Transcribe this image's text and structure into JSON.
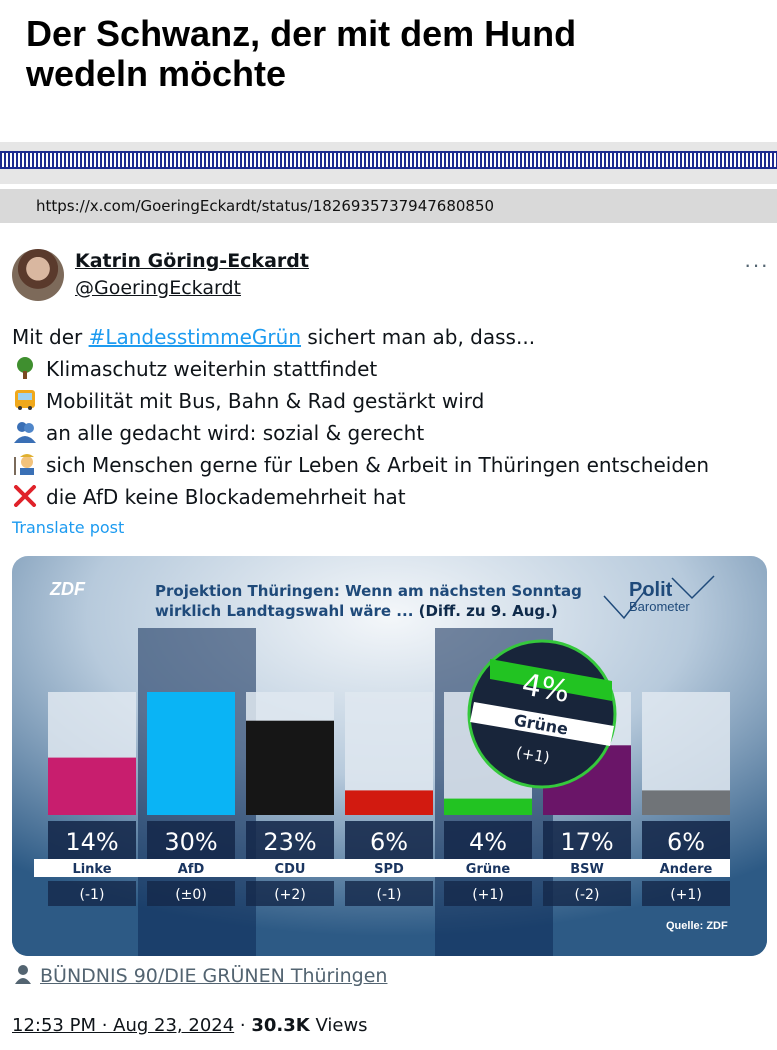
{
  "page": {
    "headline": "Der Schwanz, der mit dem Hund wedeln möchte",
    "url": "https://x.com/GoeringEckardt/status/1826935737947680850"
  },
  "post": {
    "author_name": "Katrin Göring-Eckardt",
    "author_handle": "@GoeringEckardt",
    "more_label": "···",
    "intro_before": "Mit der ",
    "hashtag": "#LandesstimmeGrün",
    "intro_after": " sichert man ab, dass...",
    "items": [
      {
        "icon": "tree-icon",
        "text": "Klimaschutz weiterhin stattfindet"
      },
      {
        "icon": "bus-icon",
        "text": "Mobilität mit Bus, Bahn & Rad gestärkt wird"
      },
      {
        "icon": "people-hugging-icon",
        "text": "an alle gedacht wird: sozial & gerecht"
      },
      {
        "icon": "farmer-icon",
        "text": "sich Menschen gerne für Leben & Arbeit in Thüringen entscheiden"
      },
      {
        "icon": "cross-mark-icon",
        "text": "die AfD keine Blockademehrheit hat"
      }
    ],
    "translate_label": "Translate post",
    "attribution": "BÜNDNIS 90/DIE GRÜNEN Thüringen",
    "timestamp": "12:53 PM · Aug 23, 2024",
    "views_count": "30.3K",
    "views_label": "Views"
  },
  "graphic": {
    "broadcaster": "ZDF",
    "brand_line1": "Polit",
    "brand_line2": "Barometer",
    "source": "Quelle: ZDF",
    "highlight_value": "4%",
    "highlight_party": "Grüne",
    "highlight_change": "(+1)"
  },
  "chart_data": {
    "type": "bar",
    "title": "Projektion Thüringen: Wenn am nächsten Sonntag wirklich Landtagswahl wäre ... (Diff. zu 9. Aug.)",
    "categories": [
      "Linke",
      "AfD",
      "CDU",
      "SPD",
      "Grüne",
      "BSW",
      "Andere"
    ],
    "values": [
      14,
      30,
      23,
      6,
      4,
      17,
      6
    ],
    "value_labels": [
      "14%",
      "30%",
      "23%",
      "6%",
      "4%",
      "17%",
      "6%"
    ],
    "changes": [
      "(-1)",
      "(±0)",
      "(+2)",
      "(-1)",
      "(+1)",
      "(-2)",
      "(+1)"
    ],
    "colors": [
      "#c81e6e",
      "#0ab4f5",
      "#161616",
      "#d21a10",
      "#22c322",
      "#6a1568",
      "#707478"
    ],
    "ylim": [
      0,
      30
    ],
    "highlighted": [
      "AfD",
      "Grüne"
    ]
  }
}
